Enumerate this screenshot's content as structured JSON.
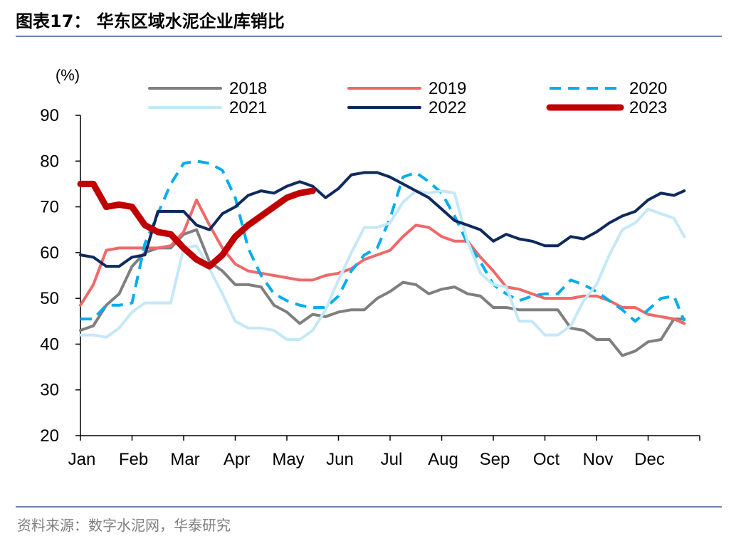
{
  "header": {
    "title": "图表17： 华东区域水泥企业库销比"
  },
  "footer": {
    "source": "资料来源：数字水泥网，华泰研究"
  },
  "chart_data": {
    "type": "line",
    "title": "图表17： 华东区域水泥企业库销比",
    "ylabel": "(%)",
    "xlabel": "",
    "ylim": [
      20,
      90
    ],
    "yticks": [
      20,
      30,
      40,
      50,
      60,
      70,
      80,
      90
    ],
    "month_labels": [
      "Jan",
      "Feb",
      "Mar",
      "Apr",
      "May",
      "Jun",
      "Jul",
      "Aug",
      "Sep",
      "Oct",
      "Nov",
      "Dec"
    ],
    "grid": false,
    "legend_position": "top",
    "series": [
      {
        "name": "2018",
        "color": "#7f7f7f",
        "style": "solid",
        "width": 4,
        "points": [
          [
            0,
            43
          ],
          [
            0.25,
            44
          ],
          [
            0.5,
            48.5
          ],
          [
            0.75,
            51
          ],
          [
            1,
            57
          ],
          [
            1.25,
            60
          ],
          [
            1.5,
            61
          ],
          [
            1.75,
            61
          ],
          [
            2,
            64
          ],
          [
            2.25,
            65
          ],
          [
            2.5,
            58
          ],
          [
            2.75,
            56
          ],
          [
            3,
            53
          ],
          [
            3.25,
            53
          ],
          [
            3.5,
            52.5
          ],
          [
            3.75,
            48.5
          ],
          [
            4,
            47
          ],
          [
            4.25,
            44.5
          ],
          [
            4.5,
            46.5
          ],
          [
            4.75,
            46
          ],
          [
            5,
            47
          ],
          [
            5.25,
            47.5
          ],
          [
            5.5,
            47.5
          ],
          [
            5.75,
            50
          ],
          [
            6,
            51.5
          ],
          [
            6.25,
            53.5
          ],
          [
            6.5,
            53
          ],
          [
            6.75,
            51
          ],
          [
            7,
            52
          ],
          [
            7.25,
            52.5
          ],
          [
            7.5,
            51
          ],
          [
            7.75,
            50.5
          ],
          [
            8,
            48
          ],
          [
            8.25,
            48
          ],
          [
            8.5,
            47.5
          ],
          [
            8.75,
            47.5
          ],
          [
            9,
            47.5
          ],
          [
            9.25,
            47.5
          ],
          [
            9.5,
            43.5
          ],
          [
            9.75,
            43
          ],
          [
            10,
            41
          ],
          [
            10.25,
            41
          ],
          [
            10.5,
            37.5
          ],
          [
            10.75,
            38.5
          ],
          [
            11,
            40.5
          ],
          [
            11.25,
            41
          ],
          [
            11.5,
            45.5
          ],
          [
            11.7,
            45.5
          ]
        ]
      },
      {
        "name": "2019",
        "color": "#f0686a",
        "style": "solid",
        "width": 4,
        "points": [
          [
            0,
            48.5
          ],
          [
            0.25,
            53
          ],
          [
            0.5,
            60.5
          ],
          [
            0.75,
            61
          ],
          [
            1,
            61
          ],
          [
            1.25,
            61
          ],
          [
            1.5,
            61
          ],
          [
            1.75,
            61.5
          ],
          [
            2,
            64.5
          ],
          [
            2.25,
            71.5
          ],
          [
            2.5,
            66
          ],
          [
            2.75,
            61
          ],
          [
            3,
            57.5
          ],
          [
            3.25,
            56
          ],
          [
            3.5,
            55.5
          ],
          [
            3.75,
            55
          ],
          [
            4,
            54.5
          ],
          [
            4.25,
            54
          ],
          [
            4.5,
            54
          ],
          [
            4.75,
            55
          ],
          [
            5,
            55.5
          ],
          [
            5.25,
            56.5
          ],
          [
            5.5,
            58.5
          ],
          [
            5.75,
            59.5
          ],
          [
            6,
            60.5
          ],
          [
            6.25,
            63.5
          ],
          [
            6.5,
            66
          ],
          [
            6.75,
            65.5
          ],
          [
            7,
            63.5
          ],
          [
            7.25,
            62.5
          ],
          [
            7.5,
            62.5
          ],
          [
            7.75,
            59
          ],
          [
            8,
            56
          ],
          [
            8.25,
            52.5
          ],
          [
            8.5,
            52
          ],
          [
            8.75,
            51
          ],
          [
            9,
            50
          ],
          [
            9.25,
            50
          ],
          [
            9.5,
            50
          ],
          [
            9.75,
            50.5
          ],
          [
            10,
            50.5
          ],
          [
            10.25,
            49.5
          ],
          [
            10.5,
            48
          ],
          [
            10.75,
            48
          ],
          [
            11,
            46.5
          ],
          [
            11.25,
            46
          ],
          [
            11.5,
            45.5
          ],
          [
            11.7,
            44.5
          ]
        ]
      },
      {
        "name": "2020",
        "color": "#00aeef",
        "style": "dashed",
        "width": 4,
        "points": [
          [
            0,
            45.5
          ],
          [
            0.25,
            45.5
          ],
          [
            0.5,
            48.5
          ],
          [
            0.75,
            48.5
          ],
          [
            1,
            49
          ],
          [
            1.25,
            62
          ],
          [
            1.5,
            68.5
          ],
          [
            1.75,
            75
          ],
          [
            2,
            79.5
          ],
          [
            2.25,
            80
          ],
          [
            2.5,
            79.5
          ],
          [
            2.75,
            78
          ],
          [
            3,
            72
          ],
          [
            3.25,
            61
          ],
          [
            3.5,
            55
          ],
          [
            3.75,
            51
          ],
          [
            4,
            49.5
          ],
          [
            4.25,
            48.5
          ],
          [
            4.5,
            48
          ],
          [
            4.75,
            48
          ],
          [
            5,
            50.5
          ],
          [
            5.25,
            56
          ],
          [
            5.5,
            59.5
          ],
          [
            5.75,
            61
          ],
          [
            6,
            67.5
          ],
          [
            6.25,
            76.5
          ],
          [
            6.5,
            77.5
          ],
          [
            6.75,
            75.5
          ],
          [
            7,
            73
          ],
          [
            7.25,
            68
          ],
          [
            7.5,
            62
          ],
          [
            7.75,
            58
          ],
          [
            8,
            53
          ],
          [
            8.25,
            51
          ],
          [
            8.5,
            49.5
          ],
          [
            8.75,
            50.5
          ],
          [
            9,
            51
          ],
          [
            9.25,
            51
          ],
          [
            9.5,
            54
          ],
          [
            9.75,
            53
          ],
          [
            10,
            51.5
          ],
          [
            10.25,
            49.5
          ],
          [
            10.5,
            47.5
          ],
          [
            10.75,
            45
          ],
          [
            11,
            47.5
          ],
          [
            11.25,
            50
          ],
          [
            11.5,
            50.5
          ],
          [
            11.7,
            45
          ]
        ]
      },
      {
        "name": "2021",
        "color": "#c5e8f7",
        "style": "solid",
        "width": 4,
        "points": [
          [
            0,
            42
          ],
          [
            0.25,
            42
          ],
          [
            0.5,
            41.5
          ],
          [
            0.75,
            43.5
          ],
          [
            1,
            47
          ],
          [
            1.25,
            49
          ],
          [
            1.5,
            49
          ],
          [
            1.75,
            49
          ],
          [
            2,
            61
          ],
          [
            2.25,
            61.5
          ],
          [
            2.5,
            56.5
          ],
          [
            2.75,
            51
          ],
          [
            3,
            45
          ],
          [
            3.25,
            43.5
          ],
          [
            3.5,
            43.5
          ],
          [
            3.75,
            43
          ],
          [
            4,
            41
          ],
          [
            4.25,
            41
          ],
          [
            4.5,
            43
          ],
          [
            4.75,
            47.5
          ],
          [
            5,
            54
          ],
          [
            5.25,
            60
          ],
          [
            5.5,
            65.5
          ],
          [
            5.75,
            65.5
          ],
          [
            6,
            66.5
          ],
          [
            6.25,
            71
          ],
          [
            6.5,
            73.5
          ],
          [
            6.75,
            73
          ],
          [
            7,
            73.5
          ],
          [
            7.25,
            73
          ],
          [
            7.5,
            62.5
          ],
          [
            7.75,
            55.5
          ],
          [
            8,
            53
          ],
          [
            8.25,
            52.5
          ],
          [
            8.5,
            45
          ],
          [
            8.75,
            45
          ],
          [
            9,
            42
          ],
          [
            9.25,
            42
          ],
          [
            9.5,
            44
          ],
          [
            9.75,
            49.5
          ],
          [
            10,
            53
          ],
          [
            10.25,
            59.5
          ],
          [
            10.5,
            65
          ],
          [
            10.75,
            66.5
          ],
          [
            11,
            69.5
          ],
          [
            11.25,
            68.5
          ],
          [
            11.5,
            67.5
          ],
          [
            11.7,
            63.5
          ]
        ]
      },
      {
        "name": "2022",
        "color": "#0e2a5e",
        "style": "solid",
        "width": 4,
        "points": [
          [
            0,
            59.5
          ],
          [
            0.25,
            59
          ],
          [
            0.5,
            57
          ],
          [
            0.75,
            57
          ],
          [
            1,
            59
          ],
          [
            1.25,
            59.5
          ],
          [
            1.5,
            69
          ],
          [
            1.75,
            69
          ],
          [
            2,
            69
          ],
          [
            2.25,
            66
          ],
          [
            2.5,
            65
          ],
          [
            2.75,
            68.5
          ],
          [
            3,
            70
          ],
          [
            3.25,
            72.5
          ],
          [
            3.5,
            73.5
          ],
          [
            3.75,
            73
          ],
          [
            4,
            74.5
          ],
          [
            4.25,
            75.5
          ],
          [
            4.5,
            74.5
          ],
          [
            4.75,
            72
          ],
          [
            5,
            74
          ],
          [
            5.25,
            77
          ],
          [
            5.5,
            77.5
          ],
          [
            5.75,
            77.5
          ],
          [
            6,
            76.5
          ],
          [
            6.25,
            75
          ],
          [
            6.5,
            73.5
          ],
          [
            6.75,
            72
          ],
          [
            7,
            69.5
          ],
          [
            7.25,
            67
          ],
          [
            7.5,
            66
          ],
          [
            7.75,
            65
          ],
          [
            8,
            62.5
          ],
          [
            8.25,
            64
          ],
          [
            8.5,
            63
          ],
          [
            8.75,
            62.5
          ],
          [
            9,
            61.5
          ],
          [
            9.25,
            61.5
          ],
          [
            9.5,
            63.5
          ],
          [
            9.75,
            63
          ],
          [
            10,
            64.5
          ],
          [
            10.25,
            66.5
          ],
          [
            10.5,
            68
          ],
          [
            10.75,
            69
          ],
          [
            11,
            71.5
          ],
          [
            11.25,
            73
          ],
          [
            11.5,
            72.5
          ],
          [
            11.7,
            73.5
          ]
        ]
      },
      {
        "name": "2023",
        "color": "#c00000",
        "style": "solid",
        "width": 9,
        "points": [
          [
            0,
            75
          ],
          [
            0.25,
            75
          ],
          [
            0.5,
            70
          ],
          [
            0.75,
            70.5
          ],
          [
            1,
            70
          ],
          [
            1.25,
            66
          ],
          [
            1.5,
            64.5
          ],
          [
            1.75,
            64
          ],
          [
            2,
            61
          ],
          [
            2.25,
            58.5
          ],
          [
            2.5,
            57
          ],
          [
            2.75,
            59.5
          ],
          [
            3,
            63.5
          ],
          [
            3.25,
            66
          ],
          [
            3.5,
            68
          ],
          [
            3.75,
            70
          ],
          [
            4,
            72
          ],
          [
            4.25,
            73
          ],
          [
            4.5,
            73.5
          ]
        ]
      }
    ]
  }
}
